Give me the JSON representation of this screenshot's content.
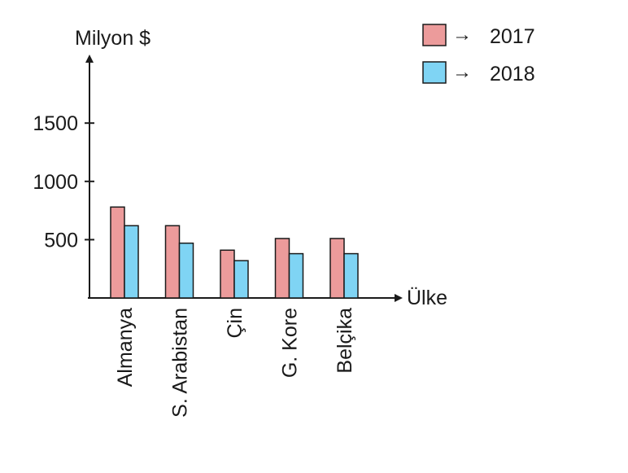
{
  "chart_data": {
    "type": "bar",
    "ylabel": "Milyon $",
    "xlabel": "Ülke",
    "categories": [
      "Almanya",
      "S. Arabistan",
      "Çin",
      "G. Kore",
      "Belçika"
    ],
    "yticks": [
      500,
      1000,
      1500
    ],
    "ylim": [
      0,
      1900
    ],
    "grid": false,
    "legend_position": "top-right",
    "legend_arrow": "→",
    "series": [
      {
        "name": "2017",
        "color": "#ec9b9b",
        "values": [
          780,
          620,
          410,
          510,
          510
        ]
      },
      {
        "name": "2018",
        "color": "#7fd4f4",
        "values": [
          620,
          470,
          320,
          380,
          380
        ]
      }
    ]
  }
}
